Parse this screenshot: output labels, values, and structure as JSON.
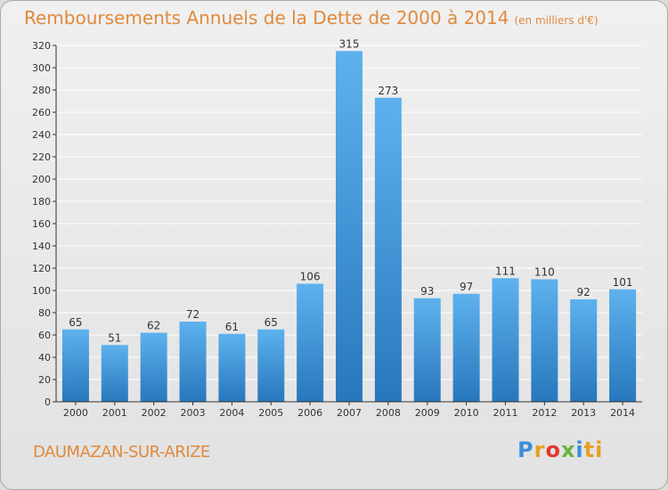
{
  "header": {
    "title": "Remboursements Annuels de la Dette de 2000 à 2014",
    "unit": "(en milliers d'€)"
  },
  "footer": {
    "commune": "DAUMAZAN-SUR-ARIZE",
    "logo_parts": [
      "P",
      "r",
      "o",
      "x",
      "i",
      "ti"
    ]
  },
  "colors": {
    "title": "#e08a3c",
    "bar_light": "#5aaeeb",
    "bar_dark": "#2a7bc2",
    "grid": "#ffffff",
    "axis": "#333333"
  },
  "chart_data": {
    "type": "bar",
    "title": "Remboursements Annuels de la Dette de 2000 à 2014",
    "categories": [
      "2000",
      "2001",
      "2002",
      "2003",
      "2004",
      "2005",
      "2006",
      "2007",
      "2008",
      "2009",
      "2010",
      "2011",
      "2012",
      "2013",
      "2014"
    ],
    "values": [
      65,
      51,
      62,
      72,
      61,
      65,
      106,
      315,
      273,
      93,
      97,
      111,
      110,
      92,
      101
    ],
    "ylim": [
      0,
      320
    ],
    "yticks": [
      0,
      20,
      40,
      60,
      80,
      100,
      120,
      140,
      160,
      180,
      200,
      220,
      240,
      260,
      280,
      300,
      320
    ],
    "grid": true,
    "data_labels": true
  }
}
